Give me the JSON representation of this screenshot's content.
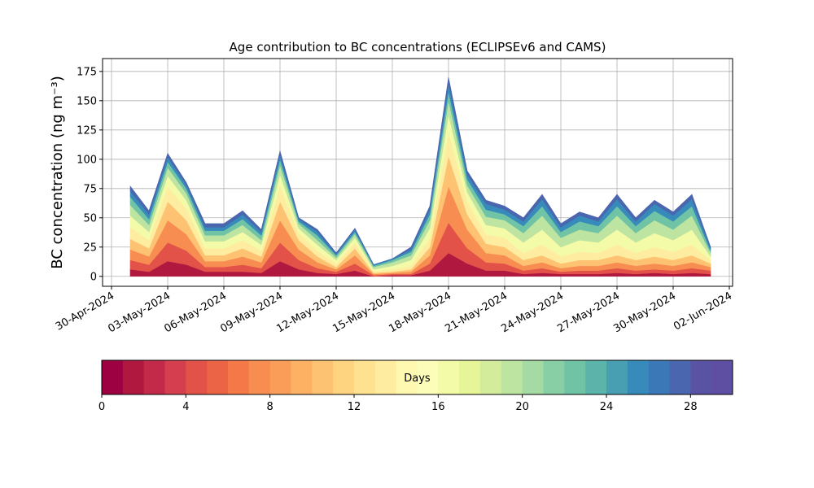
{
  "chart_data": {
    "type": "stacked-area",
    "title": "Age contribution to BC concentrations (ECLIPSEv6 and CAMS)",
    "y_label": "BC concentration (ng m⁻³)",
    "x": [
      "2024-05-01",
      "2024-05-02",
      "2024-05-03",
      "2024-05-04",
      "2024-05-05",
      "2024-05-06",
      "2024-05-07",
      "2024-05-08",
      "2024-05-09",
      "2024-05-10",
      "2024-05-11",
      "2024-05-12",
      "2024-05-13",
      "2024-05-14",
      "2024-05-15",
      "2024-05-16",
      "2024-05-17",
      "2024-05-18",
      "2024-05-19",
      "2024-05-20",
      "2024-05-21",
      "2024-05-22",
      "2024-05-23",
      "2024-05-24",
      "2024-05-25",
      "2024-05-26",
      "2024-05-27",
      "2024-05-28",
      "2024-05-29",
      "2024-05-30",
      "2024-05-31",
      "2024-06-01"
    ],
    "series": [
      {
        "color": "#b0183f",
        "values": [
          6,
          4,
          13,
          10,
          4,
          4,
          4,
          3,
          13,
          6,
          3,
          2,
          5,
          0,
          1,
          1,
          5,
          20,
          11,
          5,
          5,
          2,
          3,
          2,
          2,
          2,
          3,
          2,
          3,
          2,
          3,
          2
        ]
      },
      {
        "color": "#e25249",
        "values": [
          8,
          6,
          16,
          12,
          4,
          4,
          6,
          4,
          16,
          8,
          4,
          2,
          6,
          1,
          1,
          1,
          6,
          26,
          13,
          7,
          6,
          3,
          4,
          2,
          3,
          3,
          4,
          3,
          3,
          3,
          4,
          3
        ]
      },
      {
        "color": "#f88d52",
        "values": [
          9,
          7,
          19,
          14,
          5,
          5,
          7,
          5,
          19,
          9,
          5,
          2,
          7,
          1,
          1,
          2,
          7,
          31,
          16,
          8,
          7,
          4,
          5,
          3,
          4,
          4,
          5,
          4,
          5,
          4,
          5,
          3
        ]
      },
      {
        "color": "#fdc373",
        "values": [
          9,
          7,
          16,
          12,
          5,
          5,
          7,
          5,
          16,
          8,
          5,
          2,
          6,
          1,
          1,
          2,
          7,
          26,
          13,
          8,
          7,
          5,
          6,
          4,
          5,
          5,
          6,
          5,
          6,
          5,
          6,
          3
        ]
      },
      {
        "color": "#feeda0",
        "values": [
          10,
          7,
          13,
          10,
          6,
          6,
          7,
          5,
          13,
          6,
          5,
          3,
          5,
          1,
          2,
          3,
          8,
          20,
          11,
          8,
          8,
          6,
          9,
          6,
          7,
          6,
          9,
          6,
          8,
          7,
          9,
          3
        ]
      },
      {
        "color": "#f3faa8",
        "values": [
          10,
          7,
          9,
          7,
          6,
          6,
          7,
          5,
          10,
          4,
          5,
          3,
          4,
          2,
          3,
          5,
          8,
          15,
          8,
          8,
          8,
          9,
          13,
          8,
          10,
          9,
          13,
          9,
          12,
          10,
          13,
          3
        ]
      },
      {
        "color": "#bde4a0",
        "values": [
          9,
          6,
          7,
          6,
          5,
          5,
          6,
          4,
          8,
          4,
          4,
          2,
          3,
          2,
          3,
          4,
          7,
          12,
          6,
          7,
          7,
          8,
          12,
          8,
          9,
          8,
          12,
          8,
          11,
          9,
          12,
          3
        ]
      },
      {
        "color": "#70c4a5",
        "values": [
          7,
          5,
          5,
          4,
          4,
          4,
          5,
          4,
          5,
          2,
          4,
          2,
          2,
          1,
          2,
          3,
          5,
          8,
          5,
          6,
          5,
          6,
          8,
          5,
          7,
          6,
          8,
          6,
          8,
          7,
          8,
          2
        ]
      },
      {
        "color": "#378bbb",
        "values": [
          5,
          4,
          4,
          3,
          3,
          3,
          4,
          3,
          4,
          2,
          3,
          1,
          2,
          1,
          1,
          2,
          4,
          7,
          4,
          5,
          4,
          4,
          6,
          4,
          5,
          4,
          6,
          4,
          6,
          5,
          6,
          2
        ]
      },
      {
        "color": "#4a66ae",
        "values": [
          4,
          3,
          3,
          2,
          3,
          3,
          3,
          2,
          3,
          1,
          2,
          1,
          1,
          0,
          0,
          2,
          3,
          5,
          3,
          3,
          3,
          3,
          4,
          3,
          3,
          3,
          4,
          3,
          3,
          3,
          4,
          1
        ]
      }
    ],
    "xlim": [
      "2024-04-30",
      "2024-06-02"
    ],
    "xticks": [
      {
        "value": "2024-04-30",
        "label": "30-Apr-2024"
      },
      {
        "value": "2024-05-03",
        "label": "03-May-2024"
      },
      {
        "value": "2024-05-06",
        "label": "06-May-2024"
      },
      {
        "value": "2024-05-09",
        "label": "09-May-2024"
      },
      {
        "value": "2024-05-12",
        "label": "12-May-2024"
      },
      {
        "value": "2024-05-15",
        "label": "15-May-2024"
      },
      {
        "value": "2024-05-18",
        "label": "18-May-2024"
      },
      {
        "value": "2024-05-21",
        "label": "21-May-2024"
      },
      {
        "value": "2024-05-24",
        "label": "24-May-2024"
      },
      {
        "value": "2024-05-27",
        "label": "27-May-2024"
      },
      {
        "value": "2024-05-30",
        "label": "30-May-2024"
      },
      {
        "value": "2024-06-02",
        "label": "02-Jun-2024"
      }
    ],
    "ylim": [
      -8.5,
      186
    ],
    "yticks": [
      0,
      25,
      50,
      75,
      100,
      125,
      150,
      175
    ],
    "grid": true,
    "colorbar": {
      "label": "Days",
      "lim": [
        0,
        30
      ],
      "ticks": [
        0,
        4,
        8,
        12,
        16,
        20,
        24,
        28
      ],
      "colors": [
        "#9e0142",
        "#b0183f",
        "#c32a4a",
        "#d53e4f",
        "#e25249",
        "#eb6445",
        "#f57948",
        "#f88d52",
        "#fa9d59",
        "#fdb163",
        "#fdc373",
        "#fed481",
        "#fee28f",
        "#feeda0",
        "#fff8b1",
        "#fbfdb9",
        "#f3faa8",
        "#e6f598",
        "#d3ec9b",
        "#bde4a0",
        "#a5daa4",
        "#89cfa5",
        "#70c4a5",
        "#5cb3a9",
        "#489fb2",
        "#378bbb",
        "#3a78b8",
        "#4a66ae",
        "#5a53a4",
        "#5e4fa2"
      ]
    }
  }
}
